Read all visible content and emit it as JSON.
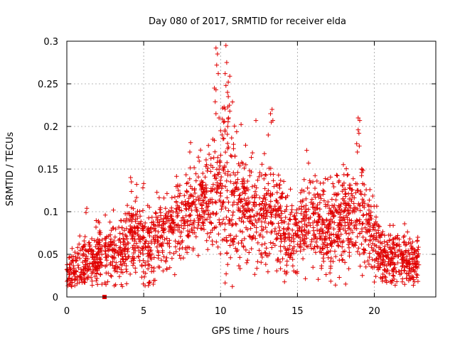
{
  "chart_data": {
    "type": "scatter",
    "title": "Day 080 of 2017, SRMTID for receiver elda",
    "xlabel": "GPS time / hours",
    "ylabel": "SRMTID / TECUs",
    "xlim": [
      0,
      24
    ],
    "ylim": [
      0,
      0.3
    ],
    "x_ticks": [
      0,
      5,
      10,
      15,
      20
    ],
    "x_tick_labels": [
      "0",
      "5",
      "10",
      "15",
      "20"
    ],
    "y_ticks": [
      0,
      0.05,
      0.1,
      0.15,
      0.2,
      0.25,
      0.3
    ],
    "y_tick_labels": [
      "0",
      "0.05",
      "0.1",
      "0.15",
      "0.2",
      "0.25",
      "0.3"
    ],
    "grid": true,
    "marker": "plus",
    "color": "#e00000",
    "trend": [
      {
        "x": 0.0,
        "y": 0.032
      },
      {
        "x": 0.5,
        "y": 0.034
      },
      {
        "x": 1.0,
        "y": 0.038
      },
      {
        "x": 1.5,
        "y": 0.045
      },
      {
        "x": 2.0,
        "y": 0.048
      },
      {
        "x": 2.5,
        "y": 0.052
      },
      {
        "x": 3.0,
        "y": 0.048
      },
      {
        "x": 3.5,
        "y": 0.055
      },
      {
        "x": 4.0,
        "y": 0.07
      },
      {
        "x": 4.5,
        "y": 0.08
      },
      {
        "x": 5.0,
        "y": 0.06
      },
      {
        "x": 5.5,
        "y": 0.062
      },
      {
        "x": 6.0,
        "y": 0.072
      },
      {
        "x": 6.5,
        "y": 0.078
      },
      {
        "x": 7.0,
        "y": 0.082
      },
      {
        "x": 7.5,
        "y": 0.09
      },
      {
        "x": 8.0,
        "y": 0.105
      },
      {
        "x": 8.5,
        "y": 0.11
      },
      {
        "x": 9.0,
        "y": 0.108
      },
      {
        "x": 9.5,
        "y": 0.118
      },
      {
        "x": 10.0,
        "y": 0.13
      },
      {
        "x": 10.5,
        "y": 0.14
      },
      {
        "x": 11.0,
        "y": 0.12
      },
      {
        "x": 11.5,
        "y": 0.105
      },
      {
        "x": 12.0,
        "y": 0.095
      },
      {
        "x": 12.5,
        "y": 0.092
      },
      {
        "x": 13.0,
        "y": 0.1
      },
      {
        "x": 13.5,
        "y": 0.102
      },
      {
        "x": 14.0,
        "y": 0.085
      },
      {
        "x": 14.5,
        "y": 0.072
      },
      {
        "x": 15.0,
        "y": 0.068
      },
      {
        "x": 15.5,
        "y": 0.085
      },
      {
        "x": 16.0,
        "y": 0.09
      },
      {
        "x": 16.5,
        "y": 0.082
      },
      {
        "x": 17.0,
        "y": 0.078
      },
      {
        "x": 17.5,
        "y": 0.085
      },
      {
        "x": 18.0,
        "y": 0.09
      },
      {
        "x": 18.5,
        "y": 0.1
      },
      {
        "x": 19.0,
        "y": 0.105
      },
      {
        "x": 19.5,
        "y": 0.085
      },
      {
        "x": 20.0,
        "y": 0.07
      },
      {
        "x": 20.5,
        "y": 0.05
      },
      {
        "x": 21.0,
        "y": 0.045
      },
      {
        "x": 21.5,
        "y": 0.045
      },
      {
        "x": 22.0,
        "y": 0.045
      },
      {
        "x": 22.5,
        "y": 0.042
      },
      {
        "x": 22.9,
        "y": 0.04
      }
    ],
    "spread": [
      {
        "x": 0.0,
        "s": 0.01
      },
      {
        "x": 1.0,
        "s": 0.015
      },
      {
        "x": 2.0,
        "s": 0.016
      },
      {
        "x": 4.0,
        "s": 0.022
      },
      {
        "x": 7.0,
        "s": 0.022
      },
      {
        "x": 9.0,
        "s": 0.03
      },
      {
        "x": 10.5,
        "s": 0.045
      },
      {
        "x": 12.0,
        "s": 0.03
      },
      {
        "x": 15.0,
        "s": 0.025
      },
      {
        "x": 19.0,
        "s": 0.03
      },
      {
        "x": 20.5,
        "s": 0.02
      },
      {
        "x": 22.9,
        "s": 0.012
      }
    ],
    "outliers": [
      {
        "x": 9.7,
        "y": 0.292
      },
      {
        "x": 9.8,
        "y": 0.285
      },
      {
        "x": 9.75,
        "y": 0.272
      },
      {
        "x": 9.85,
        "y": 0.262
      },
      {
        "x": 9.6,
        "y": 0.245
      },
      {
        "x": 9.7,
        "y": 0.243
      },
      {
        "x": 9.65,
        "y": 0.229
      },
      {
        "x": 9.7,
        "y": 0.215
      },
      {
        "x": 10.35,
        "y": 0.295
      },
      {
        "x": 10.4,
        "y": 0.275
      },
      {
        "x": 10.3,
        "y": 0.262
      },
      {
        "x": 10.6,
        "y": 0.259
      },
      {
        "x": 10.5,
        "y": 0.252
      },
      {
        "x": 10.35,
        "y": 0.248
      },
      {
        "x": 10.45,
        "y": 0.24
      },
      {
        "x": 10.5,
        "y": 0.235
      },
      {
        "x": 10.6,
        "y": 0.218
      },
      {
        "x": 10.2,
        "y": 0.205
      },
      {
        "x": 9.9,
        "y": 0.21
      },
      {
        "x": 12.3,
        "y": 0.207
      },
      {
        "x": 13.35,
        "y": 0.22
      },
      {
        "x": 13.25,
        "y": 0.215
      },
      {
        "x": 13.3,
        "y": 0.205
      },
      {
        "x": 13.4,
        "y": 0.207
      },
      {
        "x": 13.1,
        "y": 0.19
      },
      {
        "x": 18.95,
        "y": 0.21
      },
      {
        "x": 19.05,
        "y": 0.207
      },
      {
        "x": 18.95,
        "y": 0.196
      },
      {
        "x": 19.0,
        "y": 0.192
      },
      {
        "x": 18.9,
        "y": 0.17
      },
      {
        "x": 8.05,
        "y": 0.181
      },
      {
        "x": 8.0,
        "y": 0.17
      },
      {
        "x": 10.0,
        "y": 0.195
      },
      {
        "x": 10.1,
        "y": 0.19
      },
      {
        "x": 9.5,
        "y": 0.185
      },
      {
        "x": 15.6,
        "y": 0.172
      },
      {
        "x": 2.5,
        "y": 0.096
      },
      {
        "x": 1.3,
        "y": 0.104
      },
      {
        "x": 1.25,
        "y": 0.099
      },
      {
        "x": 2.05,
        "y": 0.089
      },
      {
        "x": 2.1,
        "y": 0.087
      },
      {
        "x": 4.15,
        "y": 0.14
      },
      {
        "x": 4.2,
        "y": 0.135
      },
      {
        "x": 5.0,
        "y": 0.133
      },
      {
        "x": 4.95,
        "y": 0.128
      }
    ],
    "gaps": [
      [
        2.3,
        2.45
      ]
    ],
    "zero_marker": {
      "x": 2.45,
      "y": 0.0
    },
    "n_points": 2400,
    "seed": 80
  }
}
